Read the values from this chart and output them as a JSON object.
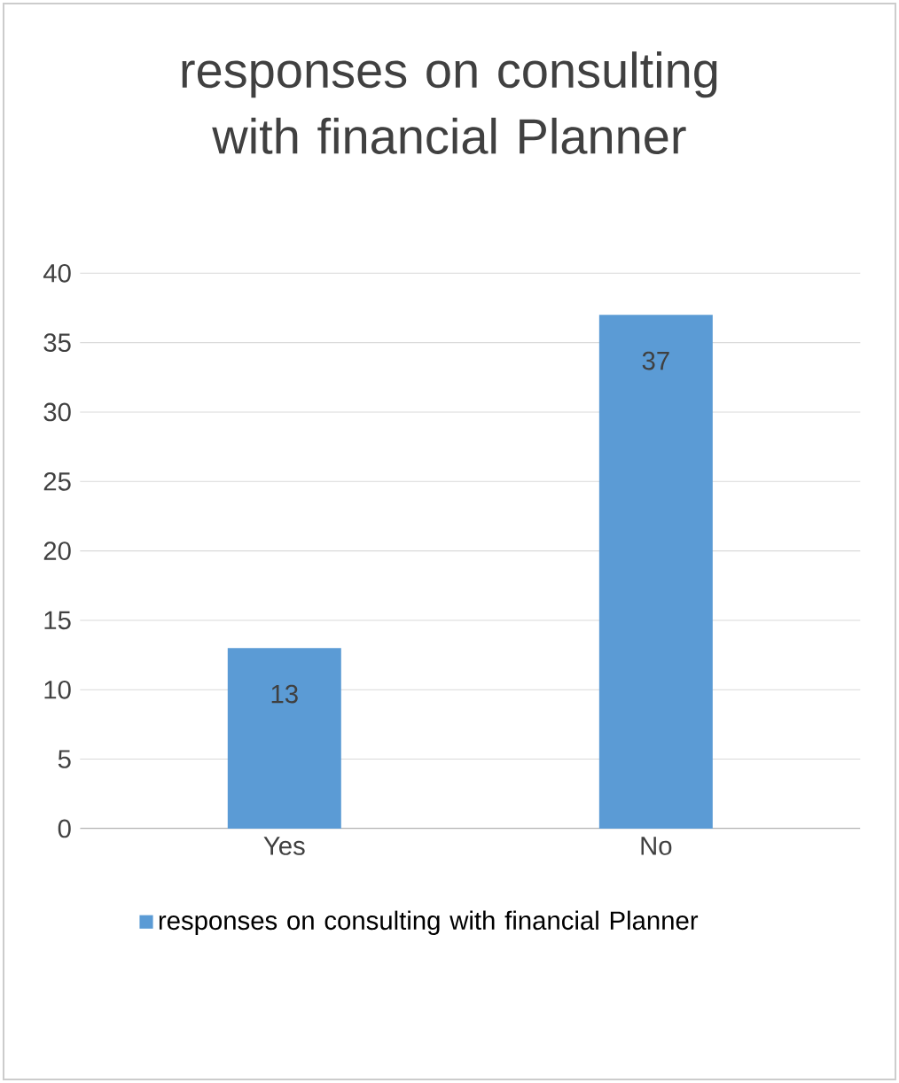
{
  "chart_data": {
    "type": "bar",
    "title": "responses on consulting with financial Planner",
    "categories": [
      "Yes",
      "No"
    ],
    "series": [
      {
        "name": "responses on consulting with financial Planner",
        "color": "#5b9bd5",
        "values": [
          13,
          37
        ]
      }
    ],
    "ylim": [
      0,
      40
    ],
    "yticks": [
      0,
      5,
      10,
      15,
      20,
      25,
      30,
      35,
      40
    ],
    "grid": "y",
    "legend": "bottom",
    "data_labels": true
  }
}
